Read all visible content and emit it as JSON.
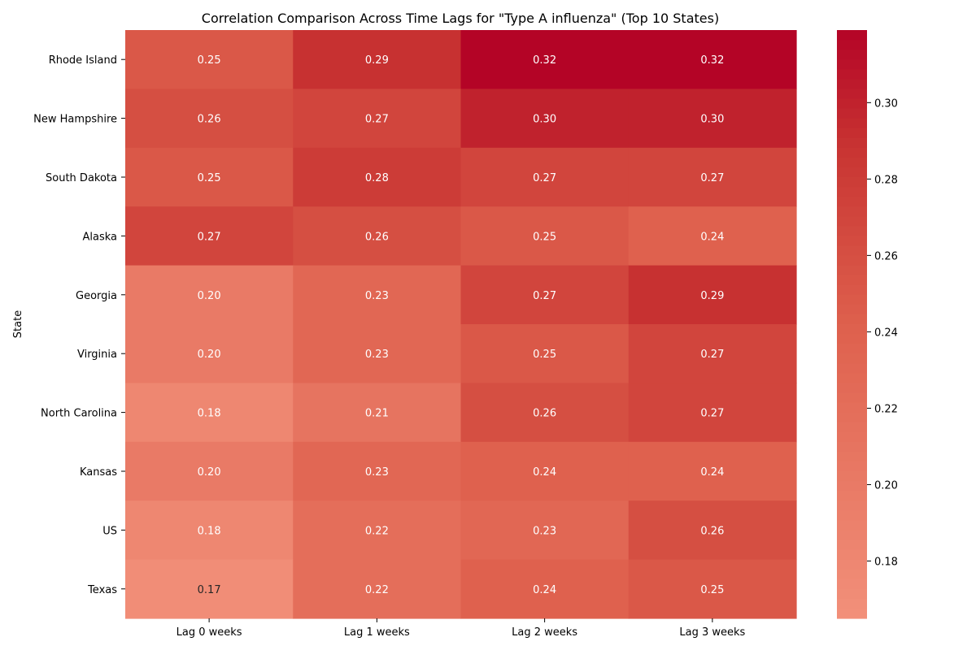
{
  "chart_data": {
    "type": "heatmap",
    "title": "Correlation Comparison Across Time Lags for \"Type A influenza\" (Top 10 States)",
    "xlabel": "",
    "ylabel": "State",
    "columns": [
      "Lag 0 weeks",
      "Lag 1 weeks",
      "Lag 2 weeks",
      "Lag 3 weeks"
    ],
    "rows": [
      "Rhode Island",
      "New Hampshire",
      "South Dakota",
      "Alaska",
      "Georgia",
      "Virginia",
      "North Carolina",
      "Kansas",
      "US",
      "Texas"
    ],
    "values": [
      [
        0.25,
        0.29,
        0.32,
        0.32
      ],
      [
        0.26,
        0.27,
        0.3,
        0.3
      ],
      [
        0.25,
        0.28,
        0.27,
        0.27
      ],
      [
        0.27,
        0.26,
        0.25,
        0.24
      ],
      [
        0.2,
        0.23,
        0.27,
        0.29
      ],
      [
        0.2,
        0.23,
        0.25,
        0.27
      ],
      [
        0.18,
        0.21,
        0.26,
        0.27
      ],
      [
        0.2,
        0.23,
        0.24,
        0.24
      ],
      [
        0.18,
        0.22,
        0.23,
        0.26
      ],
      [
        0.17,
        0.22,
        0.24,
        0.25
      ]
    ],
    "value_labels": [
      [
        "0.25",
        "0.29",
        "0.32",
        "0.32"
      ],
      [
        "0.26",
        "0.27",
        "0.30",
        "0.30"
      ],
      [
        "0.25",
        "0.28",
        "0.27",
        "0.27"
      ],
      [
        "0.27",
        "0.26",
        "0.25",
        "0.24"
      ],
      [
        "0.20",
        "0.23",
        "0.27",
        "0.29"
      ],
      [
        "0.20",
        "0.23",
        "0.25",
        "0.27"
      ],
      [
        "0.18",
        "0.21",
        "0.26",
        "0.27"
      ],
      [
        "0.20",
        "0.23",
        "0.24",
        "0.24"
      ],
      [
        "0.18",
        "0.22",
        "0.23",
        "0.26"
      ],
      [
        "0.17",
        "0.22",
        "0.24",
        "0.25"
      ]
    ],
    "colorbar": {
      "range": [
        0.165,
        0.319
      ],
      "ticks": [
        0.18,
        0.2,
        0.22,
        0.24,
        0.26,
        0.28,
        0.3
      ],
      "tick_labels": [
        "0.18",
        "0.20",
        "0.22",
        "0.24",
        "0.26",
        "0.28",
        "0.30"
      ],
      "colormap": "coolwarm (upper half)",
      "color_low": "#f2907a",
      "color_high": "#b40426"
    },
    "annotation_color_light": "#ffffff",
    "annotation_color_dark": "#262626",
    "grid": false
  }
}
